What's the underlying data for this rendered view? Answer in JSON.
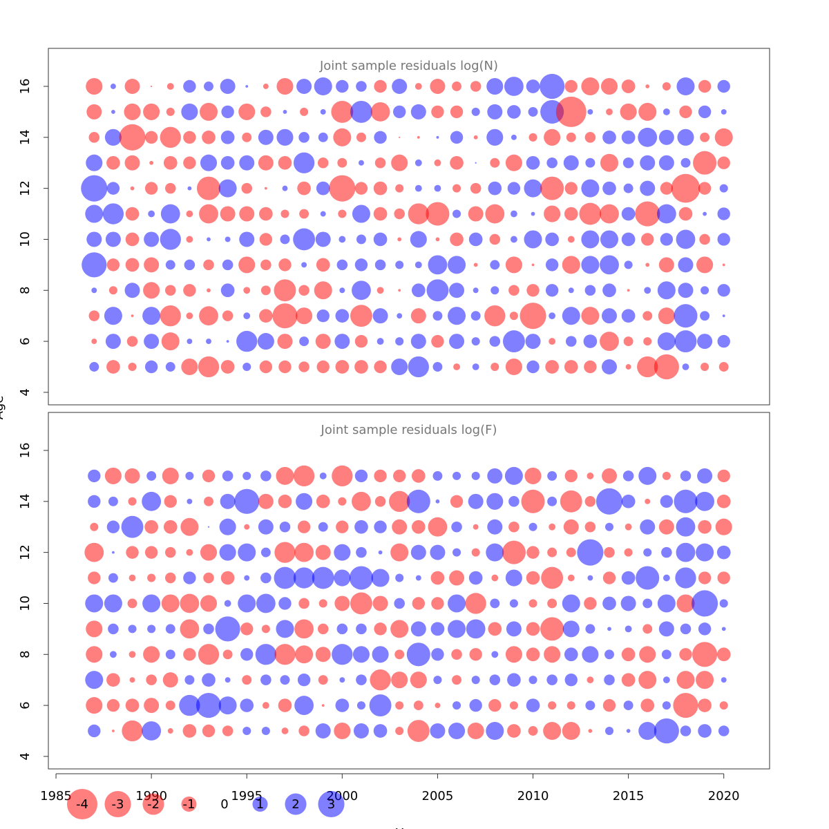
{
  "chart_data": [
    {
      "type": "bubble",
      "title": "Joint sample residuals log(N)",
      "ylabel": "Age",
      "x": [
        1987,
        1988,
        1989,
        1990,
        1991,
        1992,
        1993,
        1994,
        1995,
        1996,
        1997,
        1998,
        1999,
        2000,
        2001,
        2002,
        2003,
        2004,
        2005,
        2006,
        2007,
        2008,
        2009,
        2010,
        2011,
        2012,
        2013,
        2014,
        2015,
        2016,
        2017,
        2018,
        2019,
        2020
      ],
      "y": [
        16,
        15,
        14,
        13,
        12,
        11,
        10,
        9,
        8,
        7,
        6,
        5
      ],
      "values": [
        [
          -1.2,
          0.13,
          -1,
          -0.01,
          -0.2,
          0.7,
          0.4,
          1,
          0.03,
          -0.13,
          -1.2,
          1,
          1.4,
          0.7,
          0.5,
          -0.7,
          1,
          -0.2,
          -1,
          -0.4,
          -0.5,
          1.2,
          1.6,
          0.8,
          2.7,
          -0.7,
          -1.4,
          -1.2,
          -0.8,
          -0.07,
          -0.3,
          1.4,
          -0.7,
          0.7
        ],
        [
          -1,
          0.07,
          -1.2,
          -1.2,
          -0.3,
          1.2,
          -1.4,
          0.7,
          -1.2,
          -0.5,
          0.07,
          -0.3,
          0.13,
          -2.1,
          2.1,
          -1.6,
          0.7,
          1,
          -0.7,
          -0.7,
          0.3,
          1,
          0.8,
          0.4,
          2.4,
          -4,
          0.13,
          -0.2,
          -1.2,
          -1.4,
          0.2,
          -0.7,
          0.7,
          0.13
        ],
        [
          -0.5,
          1.2,
          -3,
          -0.7,
          -1.9,
          -0.7,
          -0.8,
          0.8,
          -0.4,
          1,
          1.2,
          0.5,
          0.4,
          -1.4,
          -0.4,
          0.7,
          -0.01,
          -0.03,
          0.03,
          0.7,
          -0.07,
          1.2,
          0.13,
          -0.3,
          -1.2,
          -0.4,
          -0.5,
          0.8,
          0.8,
          1.6,
          1,
          1.2,
          -0.4,
          -1.4
        ],
        [
          1.2,
          -0.8,
          -1,
          -0.07,
          -0.8,
          -0.7,
          1.2,
          0.8,
          1,
          -1,
          -0.8,
          1.9,
          -0.5,
          -0.4,
          0.13,
          -0.5,
          -1.2,
          0.2,
          -0.2,
          -0.8,
          0.01,
          -0.4,
          -1.2,
          0.8,
          0.5,
          1,
          0.4,
          -1.4,
          0.5,
          1,
          1,
          0.4,
          -2.4,
          -0.7
        ],
        [
          3,
          0.7,
          -0.07,
          -0.7,
          -0.5,
          0.07,
          -2.4,
          1.4,
          -0.5,
          -0.03,
          0.13,
          -0.8,
          0.8,
          -3,
          -0.7,
          -0.8,
          -0.3,
          0.2,
          0.2,
          -0.3,
          -0.5,
          0.8,
          0.7,
          1.4,
          -2.4,
          -0.7,
          1.4,
          0.8,
          0.4,
          1,
          -0.7,
          -3.6,
          -0.7,
          0.3
        ],
        [
          1.4,
          1.9,
          -0.8,
          0.2,
          1.6,
          -0.2,
          -1.6,
          -1,
          -1,
          -0.8,
          -0.3,
          -0.4,
          0.13,
          -0.3,
          1.4,
          -0.8,
          -0.5,
          -1.9,
          -2.4,
          0.3,
          -1,
          -1.6,
          0.2,
          0.07,
          -1.2,
          -0.8,
          -2.1,
          -1.6,
          0.8,
          -2.7,
          1.6,
          -0.8,
          0.07,
          0.7
        ],
        [
          1,
          1,
          -0.8,
          1,
          1.9,
          -0.2,
          0.07,
          0.13,
          1,
          -0.7,
          0.4,
          2.1,
          1,
          0.2,
          0.4,
          0.8,
          -0.07,
          1.2,
          -0.07,
          -0.8,
          0.8,
          -0.5,
          0.2,
          1.4,
          0.8,
          -0.2,
          1.4,
          1.4,
          0.8,
          -0.7,
          0.7,
          1.6,
          -0.5,
          0.7
        ],
        [
          2.7,
          -0.7,
          -0.8,
          -1,
          0.4,
          0.5,
          -0.5,
          0.5,
          -1.2,
          -0.5,
          -0.7,
          0.13,
          -0.8,
          0.5,
          0.7,
          0.5,
          0.3,
          0.2,
          1.6,
          1.4,
          -0.07,
          0.4,
          -1.2,
          -0.03,
          0.7,
          -1.4,
          1.4,
          1.6,
          0.3,
          -0.07,
          -1,
          1,
          -1.2,
          -0.03
        ],
        [
          0.13,
          -0.3,
          1,
          -1.2,
          -0.5,
          -0.7,
          -0.07,
          0.8,
          -0.2,
          -0.4,
          -2.1,
          -0.5,
          -1.4,
          0.13,
          1.6,
          -0.2,
          -0.03,
          0.8,
          2.1,
          1,
          0.13,
          0.3,
          -0.5,
          -0.7,
          0.7,
          0.13,
          0.5,
          0.8,
          -0.03,
          0.2,
          1.4,
          1,
          0.3,
          0.7
        ],
        [
          -0.5,
          1.4,
          -0.03,
          1.4,
          -1.9,
          -0.2,
          -1.6,
          -0.5,
          0.2,
          -0.8,
          -2.7,
          -1.2,
          0.7,
          0.8,
          -2.1,
          1,
          0.13,
          -1,
          0.4,
          1.4,
          0.4,
          -1.9,
          -0.3,
          -3,
          0.2,
          1.4,
          -1.4,
          1,
          0.8,
          -0.4,
          -1.2,
          2.4,
          0.4,
          0.03
        ],
        [
          -0.13,
          1,
          -0.5,
          1,
          -1.4,
          0.13,
          0.13,
          0.03,
          1.9,
          1.2,
          -1,
          0.4,
          -1,
          1,
          -0.7,
          0.2,
          0.3,
          1,
          -0.7,
          1,
          0.3,
          0.5,
          2.1,
          1,
          -0.2,
          0.5,
          0.8,
          -1.6,
          -0.4,
          -0.3,
          1.4,
          2.1,
          1,
          0.7
        ],
        [
          0.4,
          -0.8,
          -0.3,
          0.7,
          0.4,
          -1.2,
          -1.9,
          -0.8,
          0.3,
          -0.7,
          -0.7,
          -0.5,
          -0.7,
          -0.8,
          -0.8,
          -0.7,
          1.2,
          1.9,
          0.4,
          -0.2,
          0.2,
          -0.3,
          -1.2,
          0.7,
          -0.8,
          -0.8,
          -0.7,
          1,
          -0.13,
          -1.9,
          -2.7,
          0.2,
          -0.3,
          -0.4
        ]
      ],
      "xlim": [
        1984.6,
        2022.4
      ],
      "ylim": [
        3.51,
        17.49
      ],
      "yticks": [
        4,
        6,
        8,
        10,
        12,
        14,
        16
      ],
      "colors": {
        "negative": "#ff0000",
        "positive": "#0000ff"
      },
      "opacity": 0.5
    },
    {
      "type": "bubble",
      "title": "Joint sample residuals log(F)",
      "xlabel": "Year",
      "x": [
        1987,
        1988,
        1989,
        1990,
        1991,
        1992,
        1993,
        1994,
        1995,
        1996,
        1997,
        1998,
        1999,
        2000,
        2001,
        2002,
        2003,
        2004,
        2005,
        2006,
        2007,
        2008,
        2009,
        2010,
        2011,
        2012,
        2013,
        2014,
        2015,
        2016,
        2017,
        2018,
        2019,
        2020
      ],
      "y": [
        15,
        14,
        13,
        12,
        11,
        10,
        9,
        8,
        7,
        6,
        5
      ],
      "values": [
        [
          0.7,
          -1.2,
          -1,
          0.4,
          -1.2,
          0.3,
          -0.7,
          0.5,
          0.3,
          0.5,
          -1.4,
          -1.9,
          0.2,
          -1.9,
          0.7,
          -0.7,
          -0.7,
          -0.8,
          0.4,
          0.3,
          0.3,
          1,
          1.4,
          -1.2,
          0.4,
          -0.7,
          -0.2,
          -1,
          0.5,
          1.4,
          -0.3,
          0.5,
          1,
          -0.7
        ],
        [
          0.7,
          0.4,
          -0.3,
          1.6,
          -0.7,
          0.13,
          -0.4,
          1,
          2.7,
          -1,
          -0.8,
          1.2,
          -0.8,
          -0.3,
          -1.6,
          -0.5,
          -1.9,
          2.4,
          0.07,
          -0.7,
          1,
          1.2,
          0.5,
          -2.4,
          0.4,
          -2.1,
          -0.5,
          3,
          0.8,
          -0.13,
          0.7,
          2.4,
          1.6,
          -0.8
        ],
        [
          -0.3,
          0.7,
          2.1,
          -0.8,
          -0.8,
          -1.4,
          0.01,
          1.2,
          -0.13,
          1,
          0.5,
          -0.7,
          0.4,
          -0.7,
          0.8,
          0.7,
          -1,
          -0.8,
          -1.6,
          0.5,
          -0.13,
          1,
          -0.5,
          0.3,
          -0.2,
          -1,
          -0.5,
          0.3,
          -0.2,
          1,
          -1,
          1.6,
          -0.8,
          -1.2
        ],
        [
          -1.6,
          0.03,
          -0.7,
          -0.7,
          -0.5,
          -0.2,
          -1.2,
          1.2,
          1.4,
          0.4,
          -1.9,
          -1.6,
          -1,
          1.2,
          0.5,
          0.07,
          -1.4,
          1,
          1,
          0.3,
          -0.3,
          1.4,
          -2.4,
          -0.7,
          -0.4,
          -0.4,
          3,
          -0.5,
          -0.3,
          0.3,
          0.5,
          1.6,
          1.4,
          0.8
        ],
        [
          -0.7,
          0.4,
          -0.2,
          -0.3,
          -0.5,
          0.7,
          -0.5,
          -0.8,
          0.13,
          0.5,
          2.1,
          1.9,
          2.1,
          1.2,
          2.4,
          1.4,
          0.3,
          0.13,
          -0.8,
          -1,
          0.8,
          -0.2,
          1.2,
          -0.8,
          -2.1,
          -0.2,
          0.13,
          -0.7,
          0.8,
          2.4,
          0.2,
          1.9,
          -0.7,
          -0.7
        ],
        [
          1.4,
          1.4,
          -0.4,
          1.4,
          -1.4,
          -1.6,
          -1.2,
          0.2,
          1.4,
          1.6,
          0.7,
          -0.5,
          -0.3,
          -1,
          -2.1,
          -1,
          0.5,
          -0.7,
          -0.7,
          1.4,
          -1.9,
          0.4,
          0.3,
          -0.3,
          -0.4,
          1.4,
          -0.7,
          0.8,
          1,
          0.4,
          1.4,
          -1.4,
          3,
          0.3
        ],
        [
          -1.2,
          0.5,
          0.3,
          0.3,
          0.4,
          -1.6,
          0.5,
          2.7,
          -0.7,
          -0.3,
          1.4,
          -1.6,
          -0.5,
          0.5,
          0.5,
          -0.7,
          -1.4,
          1,
          0.8,
          1.4,
          1.6,
          -0.8,
          1,
          -0.8,
          -2.4,
          1.2,
          0.4,
          0.07,
          0.2,
          -0.4,
          1,
          0.5,
          0.7,
          0.07
        ],
        [
          -1.2,
          0.2,
          -0.2,
          -1.2,
          0.4,
          -0.7,
          -1.9,
          -0.4,
          0.7,
          1.9,
          -1.9,
          -1.4,
          -1,
          1.9,
          1.2,
          1.2,
          -0.4,
          2.4,
          0.7,
          -0.5,
          -0.7,
          0.2,
          -1.2,
          -0.8,
          -1.2,
          0.8,
          1.2,
          0.4,
          -0.8,
          -1.2,
          0.4,
          -0.7,
          -2.7,
          -0.8
        ],
        [
          1.4,
          -0.8,
          -0.13,
          -0.5,
          -1,
          0.4,
          0.8,
          0.13,
          -0.4,
          0.5,
          0.4,
          0.7,
          -0.4,
          0.13,
          0.5,
          -1.9,
          -1.2,
          -1.2,
          0.3,
          -0.4,
          0.3,
          0.5,
          0.8,
          0.3,
          0.5,
          0.7,
          -0.2,
          0.5,
          -0.8,
          -1.4,
          0.2,
          -1.4,
          -1.4,
          0.13
        ],
        [
          -1.2,
          -0.7,
          -0.8,
          -1,
          -0.4,
          1.9,
          2.7,
          1.4,
          0.8,
          -0.2,
          -0.8,
          1.6,
          -0.03,
          0.8,
          0.3,
          2.1,
          -0.3,
          -0.4,
          -0.13,
          0.3,
          0.7,
          -0.7,
          -0.3,
          0.8,
          -0.3,
          -0.3,
          0.4,
          -0.7,
          0.4,
          -0.8,
          0.3,
          -2.7,
          -0.8,
          -0.3
        ],
        [
          0.7,
          -0.03,
          -1.9,
          1.6,
          -0.13,
          -0.8,
          -0.7,
          -0.5,
          0.3,
          0.3,
          -0.2,
          -0.5,
          1,
          -1.2,
          1,
          0.8,
          -0.3,
          -2.1,
          1,
          1.2,
          -1.2,
          1.4,
          -0.8,
          -0.4,
          -1.4,
          -1.4,
          -0.07,
          0.3,
          0.07,
          1.4,
          2.7,
          0.5,
          0.8,
          0.5
        ]
      ],
      "xlim": [
        1984.6,
        2022.4
      ],
      "ylim": [
        3.51,
        17.49
      ],
      "yticks": [
        4,
        6,
        8,
        10,
        12,
        14,
        16
      ],
      "xticks": [
        1985,
        1990,
        1995,
        2000,
        2005,
        2010,
        2015,
        2020
      ],
      "legend": [
        -4,
        -3,
        -2,
        -1,
        0,
        1,
        2,
        3
      ],
      "colors": {
        "negative": "#ff0000",
        "positive": "#0000ff"
      },
      "opacity": 0.5
    }
  ]
}
